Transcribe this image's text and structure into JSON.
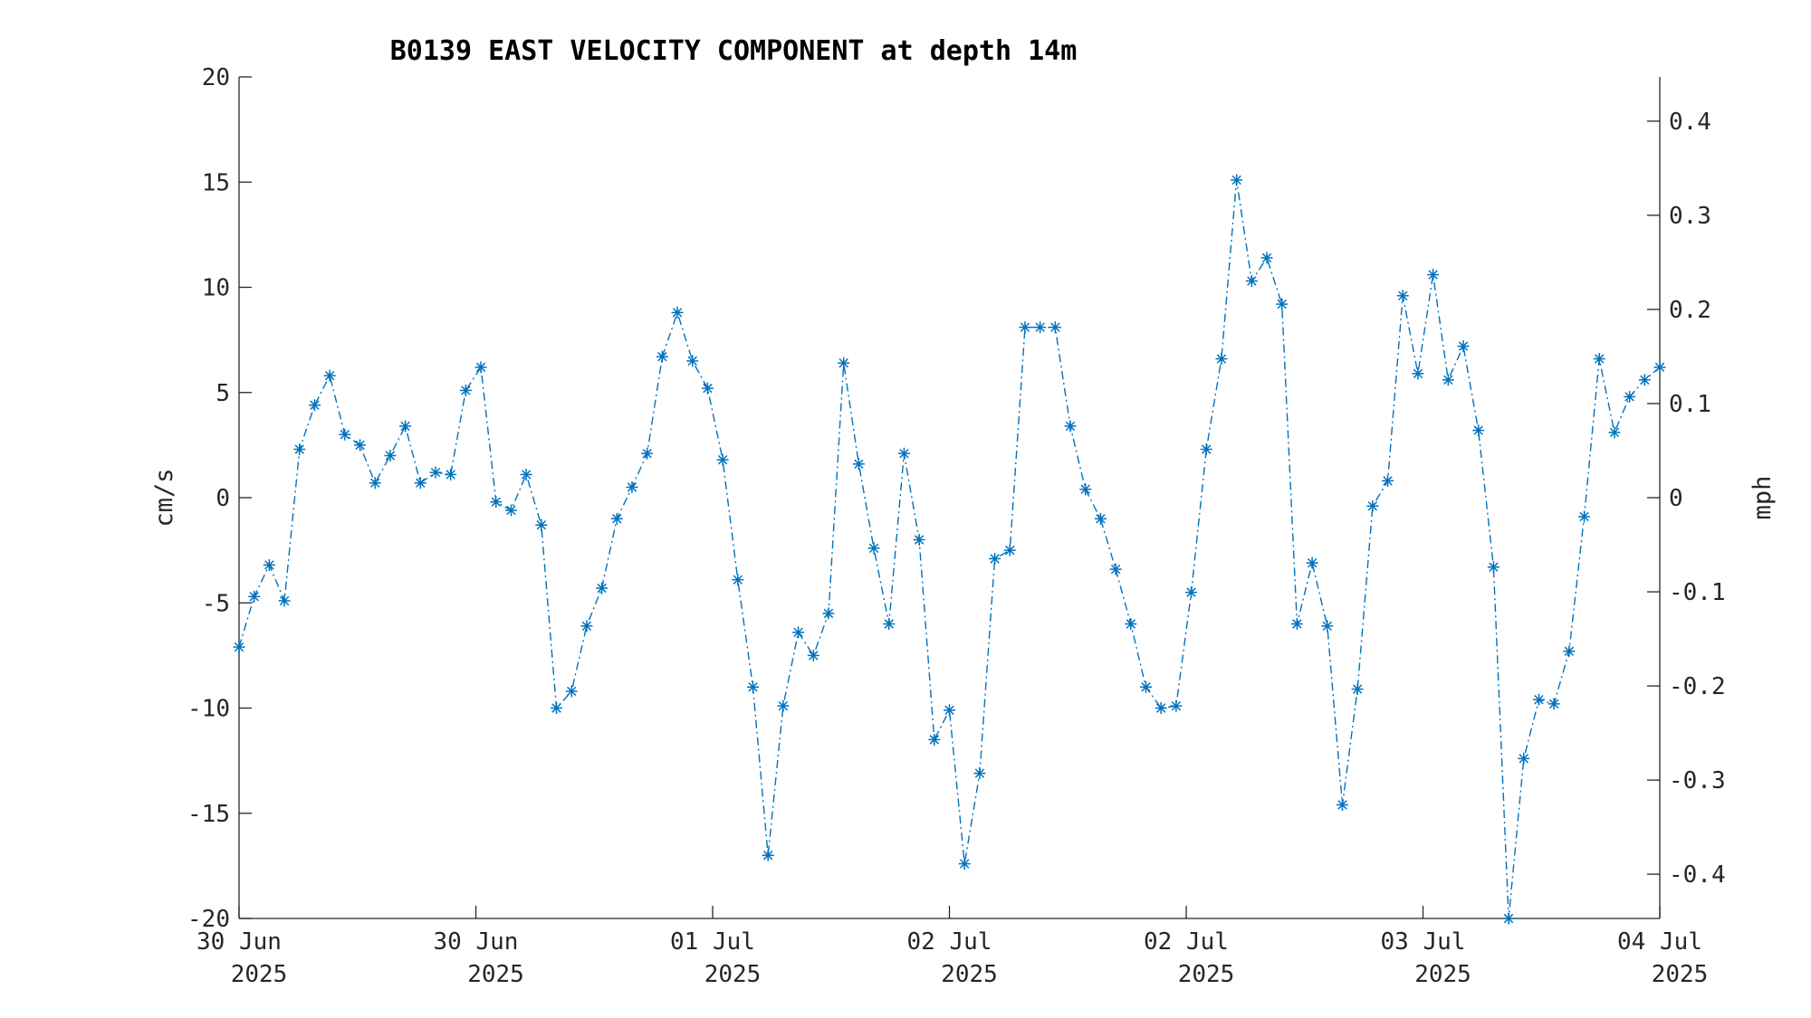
{
  "chart_data": {
    "type": "line",
    "title": "B0139 EAST VELOCITY COMPONENT at depth 14m",
    "ylabel": "cm/s",
    "y2label": "mph",
    "ylim": [
      -20,
      20
    ],
    "y2lim": [
      -0.447,
      0.447
    ],
    "xlim": [
      0,
      94
    ],
    "yticks": [
      "-20",
      "-15",
      "-10",
      "-5",
      "0",
      "5",
      "10",
      "15",
      "20"
    ],
    "y2ticks": [
      "-0.4",
      "-0.3",
      "-0.2",
      "-0.1",
      "0",
      "0.1",
      "0.2",
      "0.3",
      "0.4"
    ],
    "xticks": [
      {
        "day": "30 Jun",
        "year": "2025"
      },
      {
        "day": "30 Jun",
        "year": "2025"
      },
      {
        "day": "01 Jul",
        "year": "2025"
      },
      {
        "day": "02 Jul",
        "year": "2025"
      },
      {
        "day": "02 Jul",
        "year": "2025"
      },
      {
        "day": "03 Jul",
        "year": "2025"
      },
      {
        "day": "04 Jul",
        "year": "2025"
      }
    ],
    "color": "#0072BD",
    "marker": "asterisk",
    "linestyle": "dash-dot",
    "series": [
      {
        "x": [
          0,
          1,
          2,
          3,
          4,
          5,
          6,
          7,
          8,
          9,
          10,
          11,
          12,
          13,
          14,
          15,
          16,
          17,
          18,
          19,
          20,
          21,
          22,
          23,
          24,
          25,
          26,
          27,
          28,
          29,
          30,
          31,
          32,
          33,
          34,
          35,
          36,
          37,
          38,
          39,
          40,
          41,
          42,
          43,
          44,
          45,
          46,
          47,
          48,
          49,
          50,
          51,
          52,
          53,
          54,
          55,
          56,
          57,
          58,
          59,
          60,
          61,
          62,
          63,
          64,
          65,
          66,
          67,
          68,
          69,
          70,
          71,
          72,
          73,
          74,
          75,
          76,
          77,
          78,
          79,
          80,
          81,
          82,
          83,
          84,
          85,
          86,
          87,
          88,
          89,
          90,
          91,
          92,
          93,
          94
        ],
        "values": [
          -7.1,
          -4.7,
          -3.2,
          -4.9,
          2.3,
          4.4,
          5.8,
          3.0,
          2.5,
          0.7,
          2.0,
          3.4,
          0.7,
          1.2,
          1.1,
          5.1,
          6.2,
          -0.2,
          -0.6,
          1.1,
          -1.3,
          -10.0,
          -9.2,
          -6.1,
          -4.3,
          -1.0,
          0.5,
          2.1,
          6.7,
          8.8,
          6.5,
          5.2,
          1.8,
          -3.9,
          -9.0,
          -17.0,
          -9.9,
          -6.4,
          -7.5,
          -5.5,
          6.4,
          1.6,
          -2.4,
          -6.0,
          2.1,
          -2.0,
          -11.5,
          -10.1,
          -17.4,
          -13.1,
          -2.9,
          -2.5,
          8.1,
          8.1,
          8.1,
          3.4,
          0.4,
          -1.0,
          -3.4,
          -6.0,
          -9.0,
          -10.0,
          -9.9,
          -4.5,
          2.3,
          6.6,
          15.1,
          10.3,
          11.4,
          9.2,
          -6.0,
          -3.1,
          -6.1,
          -14.6,
          -9.1,
          -0.4,
          0.8,
          9.6,
          5.9,
          10.6,
          5.6,
          7.2,
          3.2,
          -3.3,
          -20.0,
          -12.4,
          -9.6,
          -9.8,
          -7.3,
          -0.9,
          6.6,
          3.1,
          4.8,
          5.6,
          6.2
        ]
      }
    ]
  }
}
